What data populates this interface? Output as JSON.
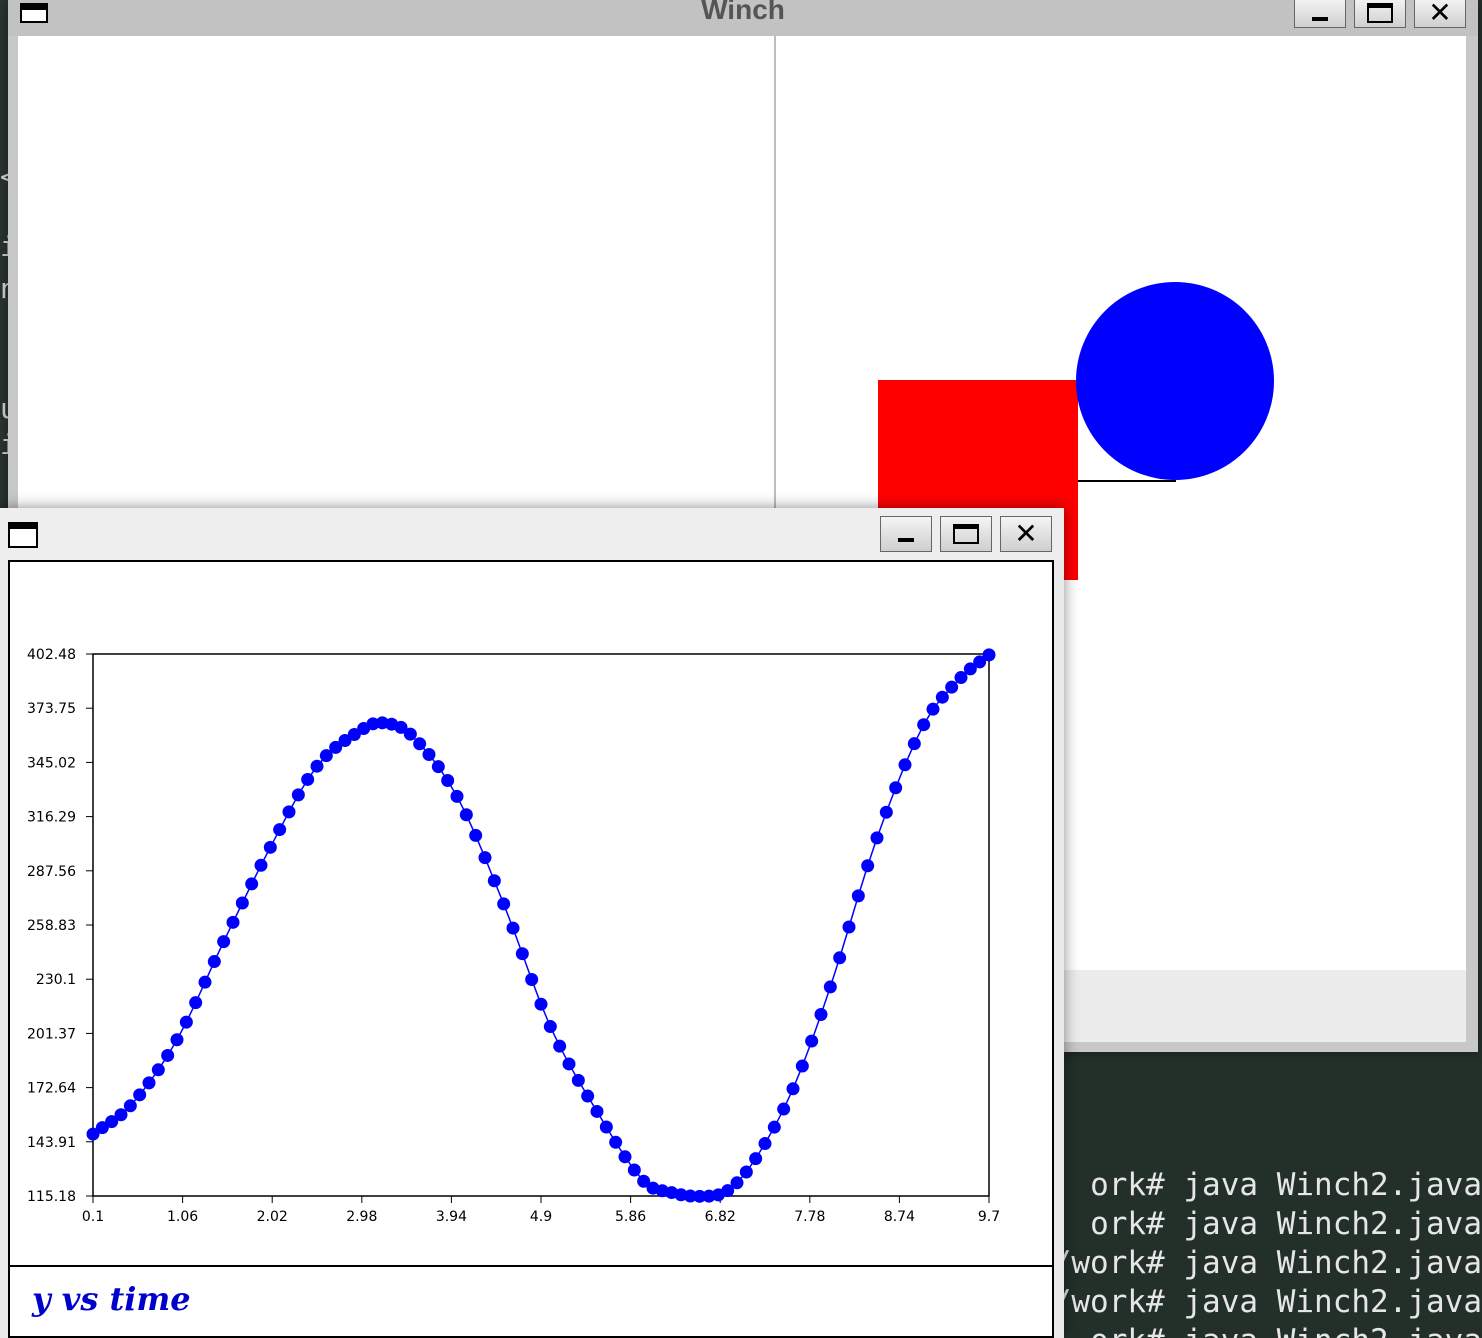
{
  "terminal": {
    "lines": [
      "ork# java Winch2.java",
      "ork# java Winch2.java",
      "/work# java Winch2.java",
      "/work# java Winch2.java",
      "ork# java Winch2.java"
    ]
  },
  "left_fragments": [
    "<",
    "i",
    "n",
    "u",
    "i"
  ],
  "winch_window": {
    "title": "Winch",
    "colors": {
      "box": "#ff0000",
      "ball": "#0000ff",
      "rope": "#000000"
    }
  },
  "plot_window": {
    "legend": "y vs time",
    "colors": {
      "series": "#0000ff"
    }
  },
  "chart_data": {
    "type": "line",
    "title": "",
    "xlabel": "",
    "ylabel": "",
    "xlim": [
      0.1,
      9.7
    ],
    "ylim": [
      115.18,
      402.48
    ],
    "x_ticks": [
      "0.1",
      "1.06",
      "2.02",
      "2.98",
      "3.94",
      "4.9",
      "5.86",
      "6.82",
      "7.78",
      "8.74",
      "9.7"
    ],
    "y_ticks": [
      "115.18",
      "143.91",
      "172.64",
      "201.37",
      "230.1",
      "258.83",
      "287.56",
      "316.29",
      "345.02",
      "373.75",
      "402.48"
    ],
    "grid": false,
    "legend": "bottom-left",
    "series": [
      {
        "name": "y vs time",
        "markers": true,
        "x_start": 0.1,
        "x_end": 9.7,
        "x_step": 0.1,
        "x": [
          0.1,
          0.5,
          1.0,
          1.5,
          2.0,
          2.5,
          3.0,
          3.2,
          3.5,
          4.0,
          4.5,
          5.0,
          5.5,
          6.0,
          6.3,
          6.6,
          6.9,
          7.2,
          7.6,
          8.0,
          8.5,
          9.0,
          9.4,
          9.7
        ],
        "y": [
          148,
          163,
          198,
          250,
          300,
          343,
          363,
          366,
          360,
          327,
          270,
          205,
          160,
          123,
          117,
          115,
          118,
          135,
          172,
          226,
          305,
          365,
          390,
          402
        ]
      }
    ]
  }
}
